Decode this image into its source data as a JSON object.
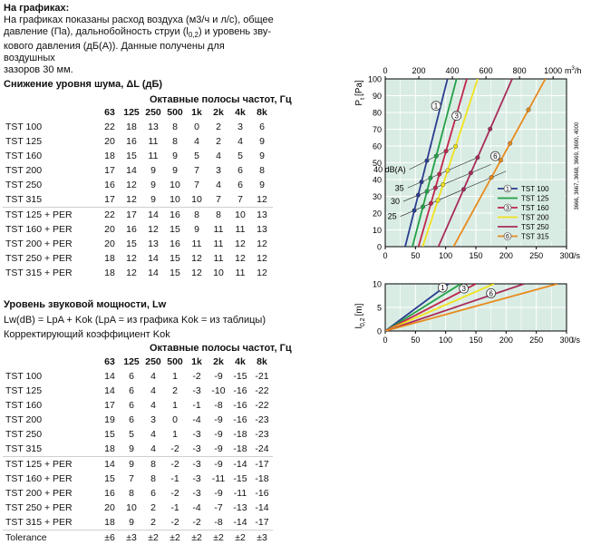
{
  "intro": {
    "heading": "На графиках:",
    "line1": "На графиках показаны расход воздуха (м3/ч и л/с), общее",
    "line2a": "давление (Па), дальнобойность струи (l",
    "line2sub": "0,2",
    "line2b": ") и уровень зву-",
    "line3": "кового давления (дБ(А)). Данные получены для воздушных",
    "line4": "зазоров 30 мм."
  },
  "noise": {
    "title": "Снижение уровня шума, ΔL (дБ)",
    "band_title": "Октавные полосы частот, Гц",
    "bands": [
      "63",
      "125",
      "250",
      "500",
      "1k",
      "2k",
      "4k",
      "8k"
    ],
    "rows": [
      {
        "name": "TST 100",
        "values": [
          "22",
          "18",
          "13",
          "8",
          "0",
          "2",
          "3",
          "6"
        ]
      },
      {
        "name": "TST 125",
        "values": [
          "20",
          "16",
          "11",
          "8",
          "4",
          "2",
          "4",
          "9"
        ]
      },
      {
        "name": "TST 160",
        "values": [
          "18",
          "15",
          "11",
          "9",
          "5",
          "4",
          "5",
          "9"
        ]
      },
      {
        "name": "TST 200",
        "values": [
          "17",
          "14",
          "9",
          "9",
          "7",
          "3",
          "6",
          "8"
        ]
      },
      {
        "name": "TST 250",
        "values": [
          "16",
          "12",
          "9",
          "10",
          "7",
          "4",
          "6",
          "9"
        ]
      },
      {
        "name": "TST 315",
        "values": [
          "17",
          "12",
          "9",
          "10",
          "10",
          "7",
          "7",
          "12"
        ]
      },
      {
        "name": "TST 125 + PER",
        "values": [
          "22",
          "17",
          "14",
          "16",
          "8",
          "8",
          "10",
          "13"
        ]
      },
      {
        "name": "TST 160 + PER",
        "values": [
          "20",
          "16",
          "12",
          "15",
          "9",
          "11",
          "11",
          "13"
        ]
      },
      {
        "name": "TST 200 + PER",
        "values": [
          "20",
          "15",
          "13",
          "16",
          "11",
          "11",
          "12",
          "12"
        ]
      },
      {
        "name": "TST 250 + PER",
        "values": [
          "18",
          "12",
          "14",
          "15",
          "12",
          "11",
          "12",
          "12"
        ]
      },
      {
        "name": "TST 315 + PER",
        "values": [
          "18",
          "12",
          "14",
          "15",
          "12",
          "10",
          "11",
          "12"
        ]
      }
    ]
  },
  "power": {
    "title": "Уровень звуковой мощности, Lw",
    "formula": "Lw(dB) = LpA + Kok (LpA = из графика Kok = из таблицы)",
    "subtitle": "Корректирующий коэффициент Kok",
    "band_title": "Октавные полосы частот, Гц",
    "bands": [
      "63",
      "125",
      "250",
      "500",
      "1k",
      "2k",
      "4k",
      "8k"
    ],
    "rows": [
      {
        "name": "TST 100",
        "values": [
          "14",
          "6",
          "4",
          "1",
          "-2",
          "-9",
          "-15",
          "-21"
        ]
      },
      {
        "name": "TST 125",
        "values": [
          "14",
          "6",
          "4",
          "2",
          "-3",
          "-10",
          "-16",
          "-22"
        ]
      },
      {
        "name": "TST 160",
        "values": [
          "17",
          "6",
          "4",
          "1",
          "-1",
          "-8",
          "-16",
          "-22"
        ]
      },
      {
        "name": "TST 200",
        "values": [
          "19",
          "6",
          "3",
          "0",
          "-4",
          "-9",
          "-16",
          "-23"
        ]
      },
      {
        "name": "TST 250",
        "values": [
          "15",
          "5",
          "4",
          "1",
          "-3",
          "-9",
          "-18",
          "-23"
        ]
      },
      {
        "name": "TST 315",
        "values": [
          "18",
          "9",
          "4",
          "-2",
          "-3",
          "-9",
          "-18",
          "-24"
        ]
      },
      {
        "name": "TST 125 + PER",
        "values": [
          "14",
          "9",
          "8",
          "-2",
          "-3",
          "-9",
          "-14",
          "-17"
        ]
      },
      {
        "name": "TST 160 + PER",
        "values": [
          "15",
          "7",
          "8",
          "-1",
          "-3",
          "-11",
          "-15",
          "-18"
        ]
      },
      {
        "name": "TST 200 + PER",
        "values": [
          "16",
          "8",
          "6",
          "-2",
          "-3",
          "-9",
          "-11",
          "-16"
        ]
      },
      {
        "name": "TST 250 + PER",
        "values": [
          "20",
          "10",
          "2",
          "-1",
          "-4",
          "-7",
          "-13",
          "-14"
        ]
      },
      {
        "name": "TST 315 + PER",
        "values": [
          "18",
          "9",
          "2",
          "-2",
          "-2",
          "-8",
          "-14",
          "-17"
        ]
      },
      {
        "name": "Tolerance",
        "values": [
          "±6",
          "±3",
          "±2",
          "±2",
          "±2",
          "±2",
          "±2",
          "±3"
        ]
      }
    ]
  },
  "chart_data": [
    {
      "type": "line",
      "xlabel": "l/s",
      "ylabel": "P",
      "ylabel_sub": "t",
      "ylabel_unit": "[Pa]",
      "x2label": "m",
      "x2label_sup": "3",
      "x2label_unit": "/h",
      "xlim": [
        0,
        300
      ],
      "ylim": [
        0,
        100
      ],
      "x_ticks": [
        "0",
        "50",
        "100",
        "150",
        "200",
        "250",
        "300"
      ],
      "y_ticks": [
        "0",
        "10",
        "20",
        "30",
        "40",
        "50",
        "60",
        "70",
        "80",
        "90",
        "100"
      ],
      "x2_ticks": [
        "0",
        "200",
        "400",
        "600",
        "800",
        "1000"
      ],
      "right_codes": "3666, 3667, 3668, 3669, 3690, 4000",
      "legend_position": "bottom-right",
      "series": [
        {
          "name": "TST 100",
          "color": "#2a3d8f",
          "x": [
            33,
            103
          ],
          "y": [
            0,
            100
          ],
          "marker": "1",
          "marker_x": 84,
          "marker_y": 84
        },
        {
          "name": "TST 125",
          "color": "#22a045",
          "x": [
            45,
            118
          ],
          "y": [
            0,
            100
          ],
          "marker": "",
          "marker_x": 0,
          "marker_y": 0
        },
        {
          "name": "TST 160",
          "color": "#c0264c",
          "x": [
            55,
            135
          ],
          "y": [
            0,
            100
          ],
          "marker": "3",
          "marker_x": 118,
          "marker_y": 78
        },
        {
          "name": "TST 200",
          "color": "#f2e21c",
          "x": [
            62,
            153
          ],
          "y": [
            0,
            100
          ],
          "marker": "",
          "marker_x": 0,
          "marker_y": 0
        },
        {
          "name": "TST 250",
          "color": "#a82c5a",
          "x": [
            88,
            210
          ],
          "y": [
            0,
            100
          ],
          "marker": "",
          "marker_x": 0,
          "marker_y": 0
        },
        {
          "name": "TST 315",
          "color": "#e88a1c",
          "x": [
            113,
            265
          ],
          "y": [
            0,
            100
          ],
          "marker": "6",
          "marker_x": 182,
          "marker_y": 54
        }
      ],
      "noise_lines": [
        {
          "label": "40 dB(A)",
          "points": [
            [
              40,
              46
            ],
            [
              112,
              59
            ]
          ]
        },
        {
          "label": "35",
          "points": [
            [
              37,
              35
            ],
            [
              152,
              53
            ]
          ]
        },
        {
          "label": "30",
          "points": [
            [
              30,
              27
            ],
            [
              175,
              49
            ]
          ]
        },
        {
          "label": "25",
          "points": [
            [
              25,
              18
            ],
            [
              200,
              45
            ]
          ]
        }
      ]
    },
    {
      "type": "line",
      "xlabel": "l/s",
      "ylabel": "l",
      "ylabel_sub": "0,2",
      "ylabel_unit": "[m]",
      "xlim": [
        0,
        300
      ],
      "ylim": [
        0,
        10
      ],
      "x_ticks": [
        "0",
        "50",
        "100",
        "150",
        "200",
        "250",
        "300"
      ],
      "y_ticks": [
        "0",
        "5",
        "10"
      ],
      "series": [
        {
          "name": "TST 100",
          "color": "#2a3d8f",
          "x": [
            0,
            105
          ],
          "y": [
            0,
            10
          ],
          "marker": "1",
          "marker_x": 95,
          "marker_y": 9.2
        },
        {
          "name": "TST 125",
          "color": "#22a045",
          "x": [
            0,
            125
          ],
          "y": [
            0,
            10
          ],
          "marker": "",
          "marker_x": 0,
          "marker_y": 0
        },
        {
          "name": "TST 160",
          "color": "#c0264c",
          "x": [
            0,
            150
          ],
          "y": [
            0,
            10
          ],
          "marker": "3",
          "marker_x": 130,
          "marker_y": 9
        },
        {
          "name": "TST 200",
          "color": "#f2e21c",
          "x": [
            0,
            180
          ],
          "y": [
            0,
            10
          ],
          "marker": "",
          "marker_x": 0,
          "marker_y": 0
        },
        {
          "name": "TST 250",
          "color": "#a82c5a",
          "x": [
            0,
            230
          ],
          "y": [
            0,
            10
          ],
          "marker": "",
          "marker_x": 0,
          "marker_y": 0
        },
        {
          "name": "TST 315",
          "color": "#e88a1c",
          "x": [
            0,
            285
          ],
          "y": [
            0,
            10
          ],
          "marker": "6",
          "marker_x": 175,
          "marker_y": 8
        }
      ]
    }
  ]
}
